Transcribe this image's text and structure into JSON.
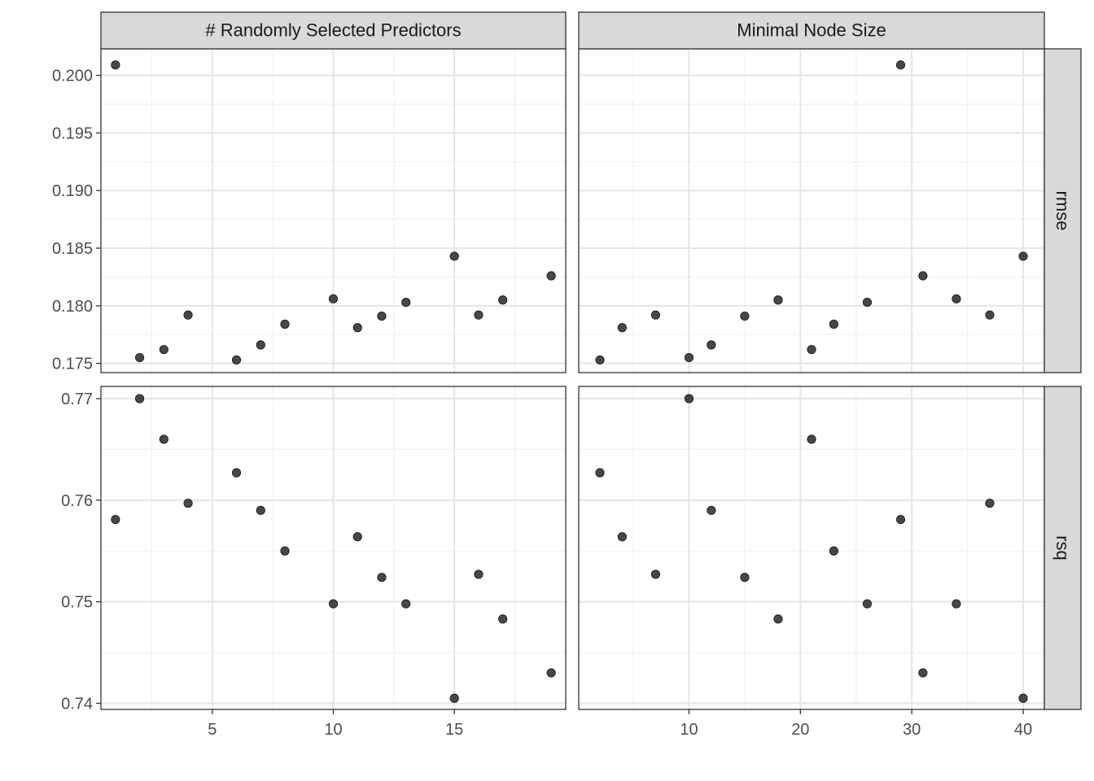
{
  "chart_data": {
    "type": "scatter",
    "layout": "facet-grid",
    "col_facets": [
      "# Randomly Selected Predictors",
      "Minimal Node Size"
    ],
    "row_facets": [
      "rmse",
      "rsq"
    ],
    "x_scales": [
      {
        "facet": "# Randomly Selected Predictors",
        "range": [
          0.4,
          19.6
        ],
        "ticks": [
          5,
          10,
          15
        ],
        "tick_labels": [
          "5",
          "10",
          "15"
        ]
      },
      {
        "facet": "Minimal Node Size",
        "range": [
          0.1,
          41.9
        ],
        "ticks": [
          10,
          20,
          30,
          40
        ],
        "tick_labels": [
          "10",
          "20",
          "30",
          "40"
        ]
      }
    ],
    "y_scales": [
      {
        "facet": "rmse",
        "range": [
          0.1742,
          0.2023
        ],
        "ticks": [
          0.175,
          0.18,
          0.185,
          0.19,
          0.195,
          0.2
        ],
        "tick_labels": [
          "0.175",
          "0.180",
          "0.185",
          "0.190",
          "0.195",
          "0.200"
        ]
      },
      {
        "facet": "rsq",
        "range": [
          0.7394,
          0.7712
        ],
        "ticks": [
          0.74,
          0.75,
          0.76,
          0.77
        ],
        "tick_labels": [
          "0.74",
          "0.75",
          "0.76",
          "0.77"
        ]
      }
    ],
    "panels": [
      {
        "row": "rmse",
        "col": "# Randomly Selected Predictors",
        "points": [
          {
            "x": 1,
            "y": 0.2009
          },
          {
            "x": 2,
            "y": 0.1755
          },
          {
            "x": 3,
            "y": 0.1762
          },
          {
            "x": 4,
            "y": 0.1792
          },
          {
            "x": 6,
            "y": 0.1753
          },
          {
            "x": 7,
            "y": 0.1766
          },
          {
            "x": 8,
            "y": 0.1784
          },
          {
            "x": 10,
            "y": 0.1806
          },
          {
            "x": 11,
            "y": 0.1781
          },
          {
            "x": 12,
            "y": 0.1791
          },
          {
            "x": 13,
            "y": 0.1803
          },
          {
            "x": 15,
            "y": 0.1843
          },
          {
            "x": 16,
            "y": 0.1792
          },
          {
            "x": 17,
            "y": 0.1805
          },
          {
            "x": 19,
            "y": 0.1826
          }
        ]
      },
      {
        "row": "rmse",
        "col": "Minimal Node Size",
        "points": [
          {
            "x": 2,
            "y": 0.1753
          },
          {
            "x": 4,
            "y": 0.1781
          },
          {
            "x": 7,
            "y": 0.1792
          },
          {
            "x": 10,
            "y": 0.1755
          },
          {
            "x": 12,
            "y": 0.1766
          },
          {
            "x": 15,
            "y": 0.1791
          },
          {
            "x": 18,
            "y": 0.1805
          },
          {
            "x": 21,
            "y": 0.1762
          },
          {
            "x": 23,
            "y": 0.1784
          },
          {
            "x": 26,
            "y": 0.1803
          },
          {
            "x": 29,
            "y": 0.2009
          },
          {
            "x": 31,
            "y": 0.1826
          },
          {
            "x": 34,
            "y": 0.1806
          },
          {
            "x": 37,
            "y": 0.1792
          },
          {
            "x": 40,
            "y": 0.1843
          }
        ]
      },
      {
        "row": "rsq",
        "col": "# Randomly Selected Predictors",
        "points": [
          {
            "x": 1,
            "y": 0.7581
          },
          {
            "x": 2,
            "y": 0.77
          },
          {
            "x": 3,
            "y": 0.766
          },
          {
            "x": 4,
            "y": 0.7597
          },
          {
            "x": 6,
            "y": 0.7627
          },
          {
            "x": 7,
            "y": 0.759
          },
          {
            "x": 8,
            "y": 0.755
          },
          {
            "x": 10,
            "y": 0.7498
          },
          {
            "x": 11,
            "y": 0.7564
          },
          {
            "x": 12,
            "y": 0.7524
          },
          {
            "x": 13,
            "y": 0.7498
          },
          {
            "x": 15,
            "y": 0.7405
          },
          {
            "x": 16,
            "y": 0.7527
          },
          {
            "x": 17,
            "y": 0.7483
          },
          {
            "x": 19,
            "y": 0.743
          }
        ]
      },
      {
        "row": "rsq",
        "col": "Minimal Node Size",
        "points": [
          {
            "x": 2,
            "y": 0.7627
          },
          {
            "x": 4,
            "y": 0.7564
          },
          {
            "x": 7,
            "y": 0.7527
          },
          {
            "x": 10,
            "y": 0.77
          },
          {
            "x": 12,
            "y": 0.759
          },
          {
            "x": 15,
            "y": 0.7524
          },
          {
            "x": 18,
            "y": 0.7483
          },
          {
            "x": 21,
            "y": 0.766
          },
          {
            "x": 23,
            "y": 0.755
          },
          {
            "x": 26,
            "y": 0.7498
          },
          {
            "x": 29,
            "y": 0.7581
          },
          {
            "x": 31,
            "y": 0.743
          },
          {
            "x": 34,
            "y": 0.7498
          },
          {
            "x": 37,
            "y": 0.7597
          },
          {
            "x": 40,
            "y": 0.7405
          }
        ]
      }
    ],
    "point_color": "#333333",
    "strip_fill": "#d9d9d9",
    "grid": true
  }
}
